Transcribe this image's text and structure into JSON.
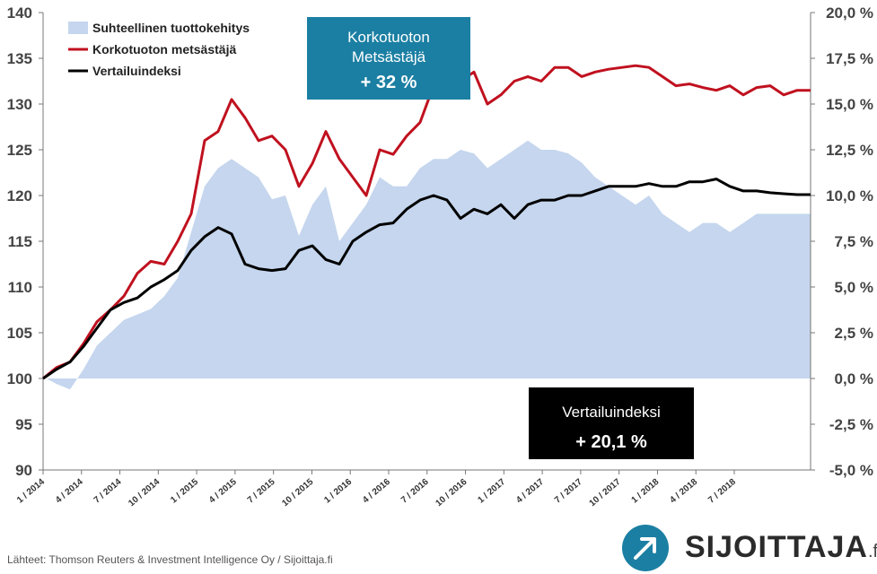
{
  "chart_data": {
    "type": "line",
    "legend": [
      {
        "name": "Suhteellinen tuottokehitys",
        "color": "#c5d6ee",
        "kind": "area"
      },
      {
        "name": "Korkotuoton metsästäjä",
        "color": "#c0111f",
        "kind": "line"
      },
      {
        "name": "Vertailuindeksi",
        "color": "#000000",
        "kind": "line"
      }
    ],
    "legend_position": "top-left",
    "grid": "none",
    "x_labels": [
      "1 / 2014",
      "4 / 2014",
      "7 / 2014",
      "10 / 2014",
      "1 / 2015",
      "4 / 2015",
      "7 / 2015",
      "10 / 2015",
      "1 / 2016",
      "4 / 2016",
      "7 / 2016",
      "10 / 2016",
      "1 / 2017",
      "4 / 2017",
      "7 / 2017",
      "10 / 2017",
      "1 / 2018",
      "4 / 2018",
      "7 / 2018"
    ],
    "y_left": {
      "min": 90,
      "max": 140,
      "ticks": [
        "90",
        "95",
        "100",
        "105",
        "110",
        "115",
        "120",
        "125",
        "130",
        "135",
        "140"
      ]
    },
    "y_right": {
      "min": -5,
      "max": 20,
      "ticks": [
        "-5,0 %",
        "-2,5 %",
        "0,0 %",
        "2,5 %",
        "5,0 %",
        "7,5 %",
        "10,0 %",
        "12,5 %",
        "15,0 %",
        "17,5 %",
        "20,0 %"
      ]
    },
    "x": [
      0,
      1,
      2,
      3,
      4,
      5,
      6,
      7,
      8,
      9,
      10,
      11,
      12,
      13,
      14,
      15,
      16,
      17,
      18,
      19,
      20,
      21,
      22,
      23,
      24,
      25,
      26,
      27,
      28,
      29,
      30,
      31,
      32,
      33,
      34,
      35,
      36,
      37,
      38,
      39,
      40,
      41,
      42,
      43,
      44,
      45,
      46,
      47,
      48,
      49,
      50,
      51,
      52,
      53,
      54,
      55,
      56,
      57
    ],
    "series": [
      {
        "name": "Korkotuoton metsästäjä",
        "color": "#c0111f",
        "values": [
          100.0,
          101.2,
          101.8,
          103.8,
          106.2,
          107.5,
          109.0,
          111.5,
          112.8,
          112.5,
          115.0,
          118.0,
          126.0,
          127.0,
          130.5,
          128.5,
          126.0,
          126.5,
          125.0,
          121.0,
          123.5,
          127.0,
          124.0,
          122.0,
          120.0,
          125.0,
          124.5,
          126.5,
          128.0,
          132.0,
          133.0,
          132.5,
          133.5,
          130.0,
          131.0,
          132.5,
          133.0,
          132.5,
          134.0,
          134.0,
          133.0,
          133.5,
          133.8,
          134.0,
          134.2,
          134.0,
          133.0,
          132.0,
          132.2,
          131.8,
          131.5,
          132.0,
          131.0,
          131.8,
          132.0,
          131.0,
          131.5,
          131.5
        ]
      },
      {
        "name": "Vertailuindeksi",
        "color": "#000000",
        "values": [
          100.0,
          101.0,
          101.8,
          103.5,
          105.5,
          107.5,
          108.3,
          108.8,
          110.0,
          110.8,
          111.8,
          114.0,
          115.5,
          116.5,
          115.8,
          112.5,
          112.0,
          111.8,
          112.0,
          114.0,
          114.5,
          113.0,
          112.5,
          115.0,
          116.0,
          116.8,
          117.0,
          118.5,
          119.5,
          120.0,
          119.5,
          117.5,
          118.5,
          118.0,
          119.0,
          117.5,
          119.0,
          119.5,
          119.5,
          120.0,
          120.0,
          120.5,
          121.0,
          121.0,
          121.0,
          121.3,
          121.0,
          121.0,
          121.5,
          121.5,
          121.8,
          121.0,
          120.5,
          120.5,
          120.3,
          120.2,
          120.1,
          120.1
        ]
      },
      {
        "name": "Suhteellinen tuottokehitys",
        "color": "#c5d6ee",
        "values": [
          0.1,
          -0.3,
          -0.6,
          0.5,
          1.8,
          2.5,
          3.2,
          3.5,
          3.8,
          4.5,
          5.5,
          8.0,
          10.5,
          11.5,
          12.0,
          11.5,
          11.0,
          9.8,
          10.0,
          7.8,
          9.5,
          10.5,
          7.5,
          8.5,
          9.5,
          11.0,
          10.5,
          10.5,
          11.5,
          12.0,
          12.0,
          12.5,
          12.3,
          11.5,
          12.0,
          12.5,
          13.0,
          12.5,
          12.5,
          12.3,
          11.8,
          11.0,
          10.5,
          10.0,
          9.5,
          10.0,
          9.0,
          8.5,
          8.0,
          8.5,
          8.5,
          8.0,
          8.5,
          9.0,
          9.0,
          9.0,
          9.0,
          9.0
        ]
      }
    ]
  },
  "callouts": {
    "fund": {
      "line1": "Korkotuoton",
      "line2": "Metsästäjä",
      "value": "+ 32 %"
    },
    "index": {
      "line1": "Vertailuindeksi",
      "value": "+ 20,1 %"
    }
  },
  "footer": {
    "source": "Lähteet: Thomson Reuters & Investment Intelligence Oy / Sijoittaja.fi",
    "brand": "SIJOITTAJA",
    "brand_tld": ".fi"
  },
  "icons": {
    "logo": "arrow-up-right-icon"
  },
  "colors": {
    "callout_fund": "#1b7fa3",
    "callout_index": "#000000"
  }
}
